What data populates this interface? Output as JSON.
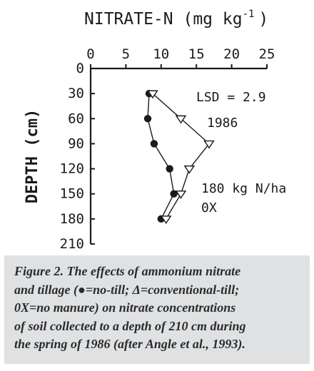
{
  "chart_data": {
    "type": "line",
    "title": "NITRATE-N (mg kg",
    "title_superscript": "-1",
    "title_close": ")",
    "xlabel": "",
    "ylabel": "DEPTH (cm)",
    "x_axis_position": "top",
    "xlim": [
      0,
      25
    ],
    "ylim": [
      0,
      210
    ],
    "y_inverted": true,
    "x_ticks": [
      "0",
      "5",
      "10",
      "15",
      "20",
      "25"
    ],
    "y_ticks": [
      "0",
      "30",
      "60",
      "90",
      "120",
      "150",
      "180",
      "210"
    ],
    "grid": false,
    "series": [
      {
        "marker": "filled-circle",
        "points": [
          {
            "x": 8.3,
            "y": 30
          },
          {
            "x": 8.1,
            "y": 60
          },
          {
            "x": 9.0,
            "y": 90
          },
          {
            "x": 11.2,
            "y": 120
          },
          {
            "x": 11.8,
            "y": 150
          },
          {
            "x": 10.0,
            "y": 180
          }
        ]
      },
      {
        "marker": "open-triangle",
        "points": [
          {
            "x": 8.8,
            "y": 30
          },
          {
            "x": 12.8,
            "y": 60
          },
          {
            "x": 16.8,
            "y": 90
          },
          {
            "x": 14.0,
            "y": 120
          },
          {
            "x": 12.8,
            "y": 150
          },
          {
            "x": 10.7,
            "y": 180
          }
        ]
      }
    ],
    "annotations": [
      {
        "text": "LSD = 2.9"
      },
      {
        "text": "1986"
      },
      {
        "text": "180 kg N/ha"
      },
      {
        "text": "0X"
      }
    ]
  },
  "caption": {
    "lines": [
      "Figure 2. The effects of ammonium nitrate",
      "and tillage (●=no-till; Δ=conventional-till;",
      "0X=no manure) on nitrate concentrations",
      "of soil collected to a depth of 210 cm during",
      "the spring of 1986 (after Angle et al., 1993)."
    ]
  },
  "colors": {
    "ink": "#1a1a1a",
    "caption_background": "#dfe1e3",
    "caption_text": "#2b2b2b"
  }
}
